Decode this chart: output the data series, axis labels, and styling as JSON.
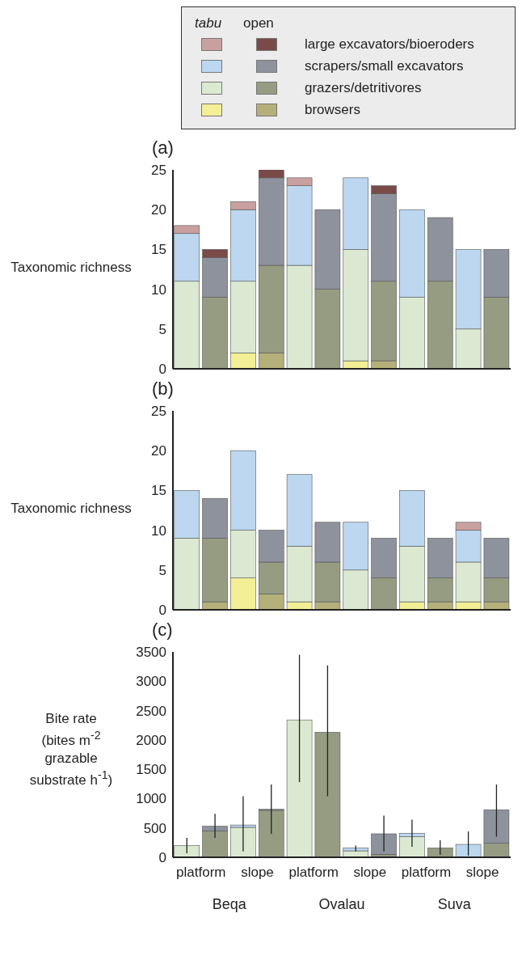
{
  "chart_data": [
    {
      "type": "bar",
      "title": "(a)",
      "ylabel": "Taxonomic richness",
      "annotations": [
        "tabu",
        "open"
      ],
      "categories": [
        null,
        null,
        null,
        null,
        null,
        null,
        null,
        null,
        null,
        null,
        null,
        null
      ],
      "stacked": true,
      "legend": "top right",
      "tick_labels": "y",
      "ylim": [
        0,
        25
      ],
      "yticks": [
        0,
        5,
        10,
        15,
        20,
        25
      ],
      "series": [
        {
          "name": "browsers",
          "color": "#f2ef96",
          "colors": [
            "#f2ef96",
            "#b5b07a",
            "#f2ef96",
            "#b5b07a",
            "#f2ef96",
            "#b5b07a",
            "#f2ef96",
            "#b5b07a",
            "#f2ef96",
            "#b5b07a",
            "#f2ef96",
            "#b5b07a"
          ],
          "values": [
            null,
            null,
            2,
            2,
            null,
            null,
            1,
            1,
            null,
            null,
            null,
            null
          ]
        },
        {
          "name": "grazers/detritivores",
          "color": "#dce9d2",
          "colors": [
            "#dce9d2",
            "#959c82",
            "#dce9d2",
            "#959c82",
            "#dce9d2",
            "#959c82",
            "#dce9d2",
            "#959c82",
            "#dce9d2",
            "#959c82",
            "#dce9d2",
            "#959c82"
          ],
          "values": [
            11,
            9,
            9,
            11,
            13,
            10,
            14,
            10,
            9,
            11,
            5,
            9
          ]
        },
        {
          "name": "scrapers/small excavators",
          "color": "#bcd7ef",
          "colors": [
            "#bcd7ef",
            "#8e929c",
            "#bcd7ef",
            "#8e929c",
            "#bcd7ef",
            "#8e929c",
            "#bcd7ef",
            "#8e929c",
            "#bcd7ef",
            "#8e929c",
            "#bcd7ef",
            "#8e929c"
          ],
          "values": [
            6,
            5,
            9,
            11,
            10,
            10,
            9,
            11,
            11,
            8,
            10,
            6
          ]
        },
        {
          "name": "large excavators/bioeroders",
          "color": "#c9a0a0",
          "colors": [
            "#c9a0a0",
            "#7a4a48",
            "#c9a0a0",
            "#7a4a48",
            "#c9a0a0",
            "#7a4a48",
            "#c9a0a0",
            "#7a4a48",
            "#c9a0a0",
            "#7a4a48",
            "#c9a0a0",
            "#7a4a48"
          ],
          "values": [
            1,
            1,
            1,
            1,
            1,
            null,
            null,
            1,
            null,
            null,
            null,
            null
          ]
        }
      ]
    },
    {
      "type": "bar",
      "title": "(b)",
      "ylabel": "Taxonomic richness",
      "categories": [
        null,
        null,
        null,
        null,
        null,
        null,
        null,
        null,
        null,
        null,
        null,
        null
      ],
      "stacked": true,
      "tick_labels": "y",
      "ylim": [
        0,
        25
      ],
      "yticks": [
        0,
        5,
        10,
        15,
        20,
        25
      ],
      "series": [
        {
          "colors": [
            "#f2ef96",
            "#b5b07a",
            "#f2ef96",
            "#b5b07a",
            "#f2ef96",
            "#b5b07a",
            "#f2ef96",
            "#b5b07a",
            "#f2ef96",
            "#b5b07a",
            "#f2ef96",
            "#b5b07a"
          ],
          "values": [
            null,
            1,
            4,
            2,
            1,
            1,
            null,
            null,
            1,
            1,
            1,
            1
          ]
        },
        {
          "colors": [
            "#dce9d2",
            "#959c82",
            "#dce9d2",
            "#959c82",
            "#dce9d2",
            "#959c82",
            "#dce9d2",
            "#959c82",
            "#dce9d2",
            "#959c82",
            "#dce9d2",
            "#959c82"
          ],
          "values": [
            9,
            8,
            6,
            4,
            7,
            5,
            5,
            4,
            7,
            3,
            5,
            3
          ]
        },
        {
          "colors": [
            "#bcd7ef",
            "#8e929c",
            "#bcd7ef",
            "#8e929c",
            "#bcd7ef",
            "#8e929c",
            "#bcd7ef",
            "#8e929c",
            "#bcd7ef",
            "#8e929c",
            "#bcd7ef",
            "#8e929c"
          ],
          "values": [
            6,
            5,
            10,
            4,
            9,
            5,
            6,
            5,
            7,
            5,
            4,
            5
          ]
        },
        {
          "colors": [
            "#c9a0a0",
            "#7a4a48",
            "#c9a0a0",
            "#7a4a48",
            "#c9a0a0",
            "#7a4a48",
            "#c9a0a0",
            "#7a4a48",
            "#c9a0a0",
            "#7a4a48",
            "#c9a0a0",
            "#7a4a48"
          ],
          "values": [
            null,
            null,
            null,
            null,
            null,
            null,
            null,
            null,
            null,
            null,
            1,
            null
          ]
        }
      ]
    },
    {
      "type": "bar",
      "title": "(c)",
      "ylabel": "Bite rate\n(bites m$^{-2}$\ngrazable\nsubstrate h$^{-1}$)",
      "categories": [
        "platform",
        null,
        "slope",
        null,
        "platform",
        null,
        "slope",
        null,
        "platform",
        null,
        "slope",
        null
      ],
      "stacked": true,
      "ylim": [
        0,
        3500
      ],
      "yticks": [
        0,
        500,
        1000,
        1500,
        2000,
        2500,
        3000,
        3500
      ],
      "annotations": [
        "Beqa",
        "Ovalau",
        "Suva"
      ],
      "series": [
        {
          "colors": [
            "#dce9d2",
            "#959c82",
            "#dce9d2",
            "#959c82",
            "#dce9d2",
            "#959c82",
            "#dce9d2",
            "#959c82",
            "#dce9d2",
            "#959c82",
            "#dce9d2",
            "#959c82"
          ],
          "values": [
            200,
            450,
            510,
            800,
            2340,
            2130,
            110,
            50,
            350,
            160,
            null,
            240
          ],
          "errors": [
            [
              70,
              330
            ],
            null,
            null,
            null,
            [
              1280,
              3450
            ],
            [
              1040,
              3270
            ],
            null,
            null,
            null,
            [
              40,
              290
            ],
            null,
            null
          ]
        },
        {
          "colors": [
            "#bcd7ef",
            "#8e929c",
            "#bcd7ef",
            "#8e929c",
            "#bcd7ef",
            "#8e929c",
            "#bcd7ef",
            "#8e929c",
            "#bcd7ef",
            "#8e929c",
            "#bcd7ef",
            "#8e929c"
          ],
          "values": [
            null,
            80,
            40,
            20,
            null,
            null,
            50,
            350,
            60,
            null,
            220,
            570
          ],
          "errors": [
            null,
            [
              330,
              740
            ],
            [
              100,
              1040
            ],
            [
              400,
              1240
            ],
            null,
            null,
            [
              100,
              200
            ],
            [
              100,
              710
            ],
            [
              180,
              640
            ],
            null,
            [
              30,
              440
            ],
            [
              350,
              1240
            ]
          ]
        }
      ]
    }
  ]
}
